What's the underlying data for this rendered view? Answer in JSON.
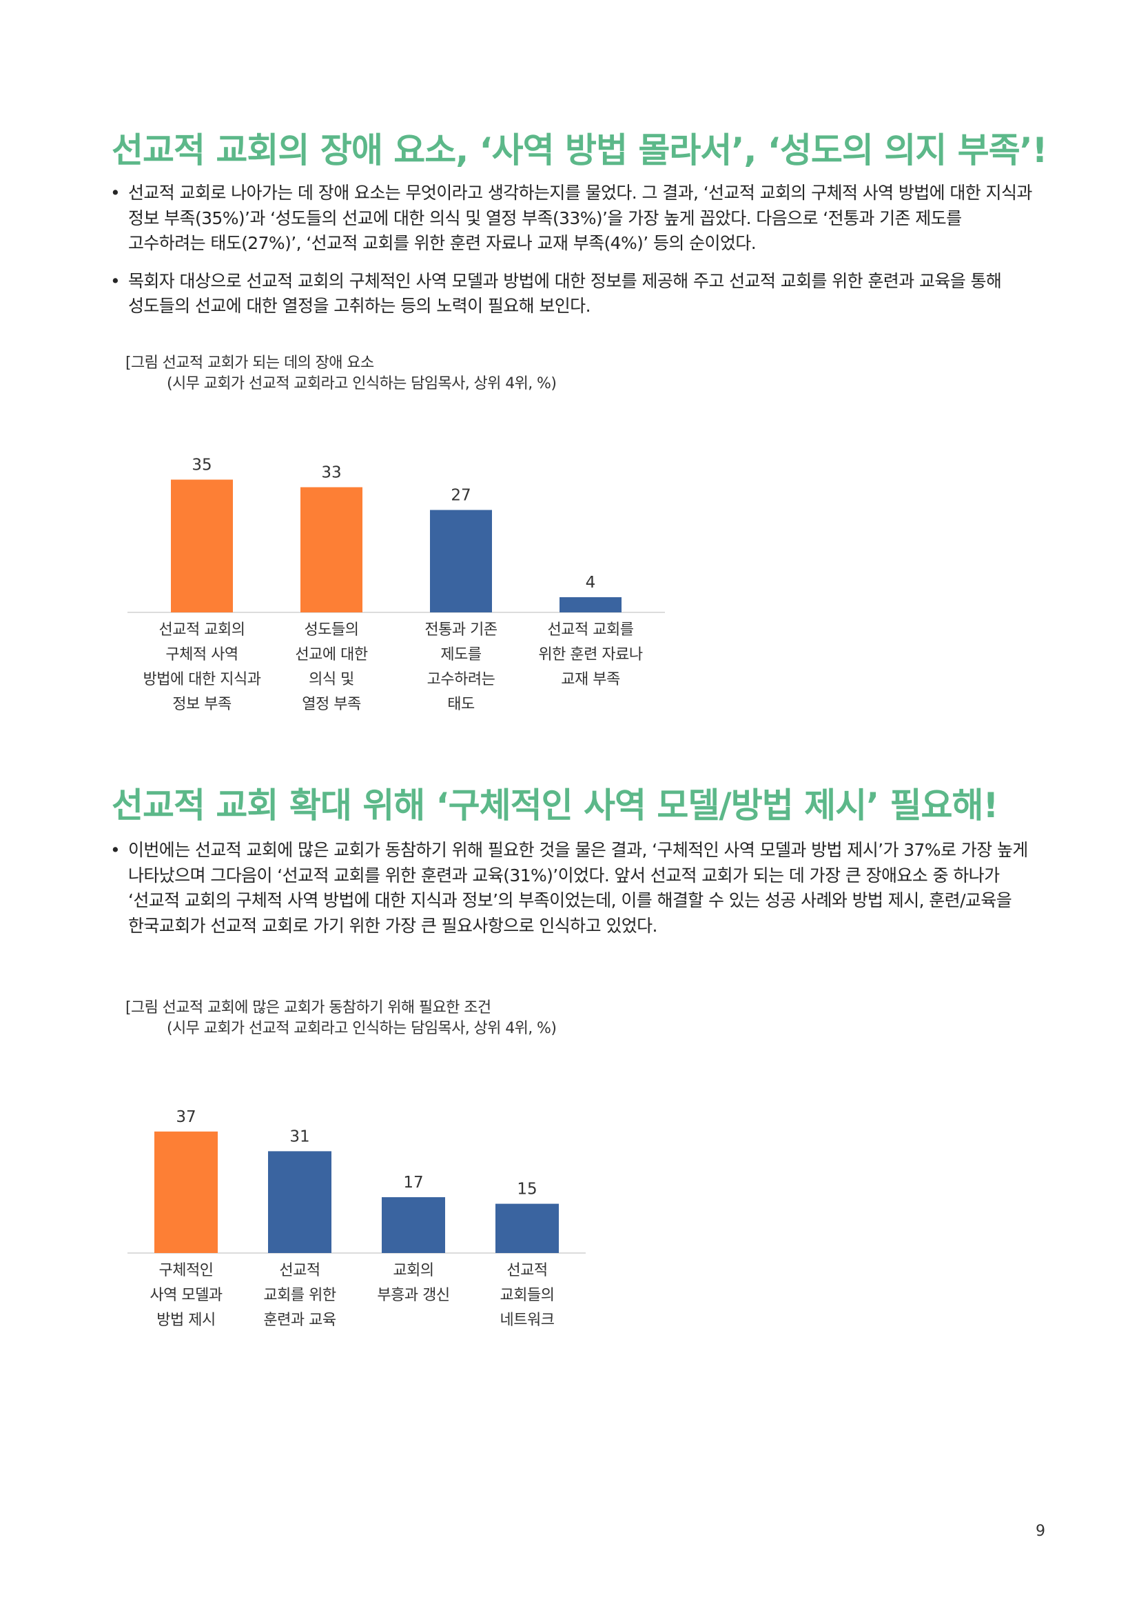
{
  "sections": [
    {
      "title": "선교적 교회의 장애 요소, ‘사역 방법 몰라서’, ‘성도의 의지 부족’!",
      "bullets": [
        "선교적 교회로 나아가는 데 장애 요소는 무엇이라고 생각하는지를 물었다. 그 결과, ‘선교적 교회의 구체적 사역 방법에 대한 지식과 정보 부족(35%)’과 ‘성도들의 선교에 대한 의식 및 열정 부족(33%)’을 가장 높게 꼽았다. 다음으로 ‘전통과 기존 제도를 고수하려는 태도(27%)’, ‘선교적 교회를 위한 훈련 자료나 교재 부족(4%)’ 등의 순이었다.",
        "목회자 대상으로 선교적 교회의 구체적인 사역 모델과 방법에 대한 정보를 제공해 주고 선교적 교회를 위한 훈련과 교육을 통해 성도들의 선교에 대한 열정을 고취하는 등의 노력이 필요해 보인다."
      ],
      "figure": {
        "title": "[그림 선교적 교회가 되는 데의 장애 요소",
        "subtitle": "(시무 교회가 선교적 교회라고 인식하는 담임목사, 상위 4위, %)"
      }
    },
    {
      "title": "선교적 교회 확대 위해 ‘구체적인 사역 모델/방법 제시’ 필요해!",
      "bullets": [
        "이번에는 선교적 교회에 많은 교회가 동참하기 위해 필요한 것을 물은 결과, ‘구체적인 사역 모델과 방법 제시’가 37%로 가장 높게 나타났으며 그다음이 ‘선교적 교회를 위한 훈련과 교육(31%)’이었다. 앞서 선교적 교회가 되는 데 가장 큰 장애요소 중 하나가 ‘선교적 교회의 구체적 사역 방법에 대한 지식과 정보’의 부족이었는데, 이를 해결할 수 있는 성공 사례와 방법 제시, 훈련/교육을 한국교회가 선교적 교회로 가기 위한 가장 큰 필요사항으로 인식하고 있었다."
      ],
      "figure": {
        "title": "[그림 선교적 교회에 많은 교회가 동참하기 위해 필요한 조건",
        "subtitle": "(시무 교회가 선교적 교회라고 인식하는 담임목사, 상위 4위, %)"
      }
    }
  ],
  "chart_data": [
    {
      "type": "bar",
      "categories": [
        [
          "선교적 교회의",
          "구체적 사역",
          "방법에 대한 지식과",
          "정보 부족"
        ],
        [
          "성도들의",
          "선교에 대한",
          "의식 및",
          "열정 부족"
        ],
        [
          "전통과 기존",
          "제도를",
          "고수하려는",
          "태도"
        ],
        [
          "선교적 교회를",
          "위한 훈련 자료나",
          "교재 부족"
        ]
      ],
      "values": [
        35,
        33,
        27,
        4
      ],
      "bar_colors": [
        "#fd7f35",
        "#fd7f35",
        "#3a64a0",
        "#3a64a0"
      ],
      "ylim": [
        0,
        40
      ],
      "grid": false,
      "legend": "none"
    },
    {
      "type": "bar",
      "categories": [
        [
          "구체적인",
          "사역 모델과",
          "방법 제시"
        ],
        [
          "선교적",
          "교회를 위한",
          "훈련과 교육"
        ],
        [
          "교회의",
          "부흥과 갱신"
        ],
        [
          "선교적",
          "교회들의",
          "네트워크"
        ]
      ],
      "values": [
        37,
        31,
        17,
        15
      ],
      "bar_colors": [
        "#fd7f35",
        "#3a64a0",
        "#3a64a0",
        "#3a64a0"
      ],
      "ylim": [
        0,
        42
      ],
      "grid": false,
      "legend": "none"
    }
  ],
  "page_number": "9"
}
